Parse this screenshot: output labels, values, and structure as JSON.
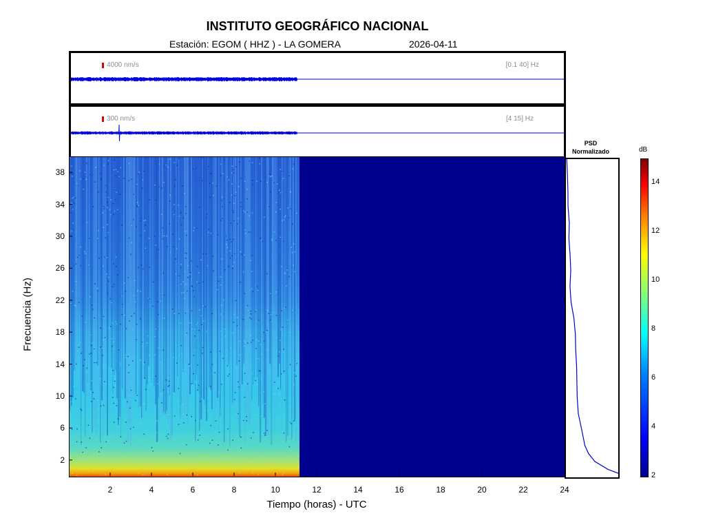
{
  "header": {
    "title": "INSTITUTO GEOGRÁFICO NACIONAL",
    "station": "Estación:  EGOM ( HHZ ) - LA GOMERA",
    "date": "2026-04-11"
  },
  "traces": [
    {
      "scale": "4000 nm/s",
      "band": "[0.1 40] Hz",
      "data_end_hour": 11
    },
    {
      "scale": "300 nm/s",
      "band": "[4 15] Hz",
      "data_end_hour": 11
    }
  ],
  "chart_data": {
    "type": "heatmap",
    "xlabel": "Tiempo (horas) - UTC",
    "ylabel": "Frecuencia  (Hz)",
    "xlim": [
      0,
      24
    ],
    "ylim": [
      0,
      40
    ],
    "xticks": [
      2,
      4,
      6,
      8,
      10,
      12,
      14,
      16,
      18,
      20,
      22,
      24
    ],
    "yticks": [
      2,
      6,
      10,
      14,
      18,
      22,
      26,
      30,
      34,
      38
    ],
    "data_end_hour": 11,
    "colorbar": {
      "unit": "dB",
      "range": [
        2,
        15
      ],
      "ticks": [
        2,
        4,
        6,
        8,
        10,
        12,
        14
      ]
    },
    "psd": {
      "title_line1": "PSD",
      "title_line2": "Normalizado",
      "freq": [
        0.5,
        1,
        2,
        3,
        4,
        6,
        8,
        10,
        12,
        14,
        16,
        18,
        20,
        22,
        24,
        26,
        28,
        30,
        32,
        34,
        36,
        38,
        40
      ],
      "value": [
        1.0,
        0.8,
        0.55,
        0.42,
        0.36,
        0.3,
        0.24,
        0.22,
        0.2,
        0.21,
        0.19,
        0.17,
        0.14,
        0.11,
        0.09,
        0.08,
        0.07,
        0.05,
        0.06,
        0.05,
        0.04,
        0.03,
        0.02
      ]
    }
  }
}
